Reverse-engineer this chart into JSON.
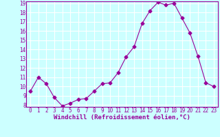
{
  "x": [
    0,
    1,
    2,
    3,
    4,
    5,
    6,
    7,
    8,
    9,
    10,
    11,
    12,
    13,
    14,
    15,
    16,
    17,
    18,
    19,
    20,
    21,
    22,
    23
  ],
  "y": [
    9.5,
    11.0,
    10.3,
    8.8,
    7.9,
    8.2,
    8.6,
    8.7,
    9.5,
    10.3,
    10.4,
    11.5,
    13.2,
    14.3,
    16.8,
    18.2,
    19.1,
    18.8,
    19.0,
    17.4,
    15.8,
    13.3,
    10.4,
    10.0
  ],
  "line_color": "#990099",
  "marker": "D",
  "marker_size": 2.5,
  "bg_color": "#ccffff",
  "grid_color": "#ffffff",
  "xlabel": "Windchill (Refroidissement éolien,°C)",
  "ylabel": "",
  "ylim": [
    7.8,
    19.2
  ],
  "xlim": [
    -0.5,
    23.5
  ],
  "yticks": [
    8,
    9,
    10,
    11,
    12,
    13,
    14,
    15,
    16,
    17,
    18,
    19
  ],
  "xticks": [
    0,
    1,
    2,
    3,
    4,
    5,
    6,
    7,
    8,
    9,
    10,
    11,
    12,
    13,
    14,
    15,
    16,
    17,
    18,
    19,
    20,
    21,
    22,
    23
  ],
  "tick_color": "#990099",
  "label_fontsize": 6.5,
  "tick_fontsize": 5.5
}
